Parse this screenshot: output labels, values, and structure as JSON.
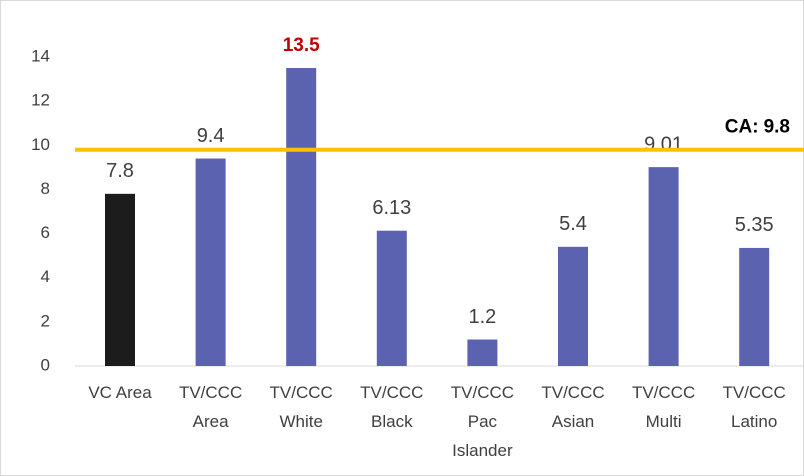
{
  "chart_data": {
    "type": "bar",
    "categories": [
      "VC Area",
      "TV/CCC\nArea",
      "TV/CCC\nWhite",
      "TV/CCC\nBlack",
      "TV/CCC\nPac\nIslander",
      "TV/CCC\nAsian",
      "TV/CCC\nMulti",
      "TV/CCC\nLatino"
    ],
    "values": [
      7.8,
      9.4,
      13.5,
      6.13,
      1.2,
      5.4,
      9.01,
      5.35
    ],
    "colors": [
      "#1c1c1c",
      "#5b62b0",
      "#5b62b0",
      "#5b62b0",
      "#5b62b0",
      "#5b62b0",
      "#5b62b0",
      "#5b62b0"
    ],
    "value_label_colors": [
      "#404040",
      "#404040",
      "#c00000",
      "#404040",
      "#404040",
      "#404040",
      "#404040",
      "#404040"
    ],
    "reference_line": {
      "label": "CA:",
      "value": 9.8,
      "color": "#ffc000"
    },
    "ylim": [
      0,
      14
    ],
    "yticks": [
      0,
      2,
      4,
      6,
      8,
      10,
      12,
      14
    ],
    "grid": false
  }
}
